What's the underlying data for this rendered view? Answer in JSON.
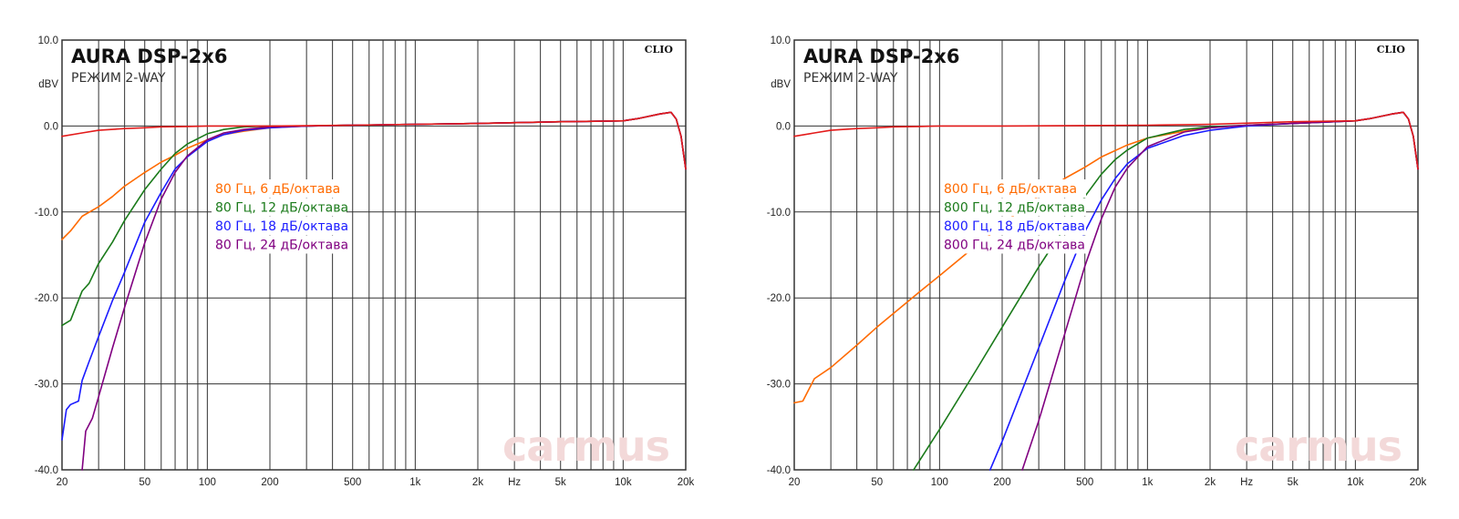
{
  "chart_data": [
    {
      "type": "line",
      "title": "AURA DSP-2x6",
      "subtitle": "РЕЖИМ 2-WAY",
      "brand": "CLIO",
      "watermark": "carmus",
      "ylabel": "dBV",
      "xlabel": "Hz",
      "x_scale": "log",
      "xlim": [
        20,
        20000
      ],
      "ylim": [
        -40,
        10
      ],
      "y_ticks": [
        "10.0",
        "0.0",
        "-10.0",
        "-20.0",
        "-30.0",
        "-40.0"
      ],
      "x_ticks": [
        "20",
        "50",
        "100",
        "200",
        "500",
        "1k",
        "2k",
        "Hz",
        "5k",
        "10k",
        "20k"
      ],
      "grid": true,
      "legend_position": "center",
      "series": [
        {
          "name": "80 Гц, 6 дБ/октава",
          "color": "#ff6a00",
          "x": [
            20,
            22,
            25,
            30,
            35,
            40,
            50,
            60,
            70,
            80,
            100,
            120,
            150,
            200,
            300,
            500,
            1000,
            2000,
            5000,
            10000,
            12000,
            15000,
            17000,
            18000,
            19000,
            20000
          ],
          "y": [
            -13.2,
            -12.2,
            -10.5,
            -9.4,
            -8.2,
            -7.0,
            -5.4,
            -4.2,
            -3.4,
            -2.6,
            -1.6,
            -1.0,
            -0.6,
            -0.2,
            0,
            0.1,
            0.2,
            0.3,
            0.5,
            0.6,
            0.9,
            1.4,
            1.6,
            0.8,
            -1.2,
            -5.0
          ]
        },
        {
          "name": "80 Гц, 12 дБ/октава",
          "color": "#1a7a1a",
          "x": [
            20,
            22,
            25,
            27,
            30,
            35,
            40,
            50,
            60,
            70,
            80,
            100,
            120,
            150,
            200,
            300,
            500,
            1000,
            2000,
            5000,
            10000,
            12000,
            15000,
            17000,
            18000,
            19000,
            20000
          ],
          "y": [
            -23.2,
            -22.6,
            -19.2,
            -18.3,
            -16.0,
            -13.5,
            -11.0,
            -7.4,
            -5.0,
            -3.2,
            -2.1,
            -0.9,
            -0.4,
            -0.1,
            0,
            0,
            0.1,
            0.2,
            0.3,
            0.5,
            0.6,
            0.9,
            1.4,
            1.6,
            0.8,
            -1.2,
            -5.0
          ]
        },
        {
          "name": "80 Гц, 18 дБ/октава",
          "color": "#1a1aff",
          "x": [
            20,
            21,
            22,
            24,
            25,
            27,
            30,
            35,
            40,
            50,
            60,
            70,
            80,
            100,
            120,
            150,
            200,
            300,
            500,
            1000,
            2000,
            5000,
            10000,
            12000,
            15000,
            17000,
            18000,
            19000,
            20000
          ],
          "y": [
            -36.5,
            -33.0,
            -32.4,
            -32.0,
            -29.6,
            -27.4,
            -24.5,
            -20.3,
            -17.0,
            -11.2,
            -7.7,
            -5.0,
            -3.6,
            -1.8,
            -1.0,
            -0.5,
            -0.2,
            0,
            0.1,
            0.2,
            0.3,
            0.5,
            0.6,
            0.9,
            1.4,
            1.6,
            0.8,
            -1.2,
            -5.0
          ]
        },
        {
          "name": "80 Гц, 24 дБ/октава",
          "color": "#800080",
          "x": [
            25,
            26,
            28,
            30,
            35,
            40,
            50,
            60,
            70,
            80,
            100,
            120,
            150,
            200,
            300,
            500,
            1000,
            2000,
            5000,
            10000,
            12000,
            15000,
            17000,
            18000,
            19000,
            20000
          ],
          "y": [
            -40.0,
            -35.5,
            -34.0,
            -31.5,
            -25.8,
            -21.1,
            -13.6,
            -8.5,
            -5.4,
            -3.5,
            -1.6,
            -0.8,
            -0.4,
            -0.1,
            0,
            0.1,
            0.2,
            0.3,
            0.5,
            0.6,
            0.9,
            1.4,
            1.6,
            0.8,
            -1.2,
            -5.0
          ]
        },
        {
          "name": "",
          "color": "#e31a1a",
          "x": [
            20,
            25,
            30,
            40,
            50,
            60,
            80,
            100,
            150,
            200,
            500,
            1000,
            2000,
            5000,
            10000,
            12000,
            15000,
            17000,
            18000,
            19000,
            20000
          ],
          "y": [
            -1.2,
            -0.8,
            -0.5,
            -0.3,
            -0.2,
            -0.1,
            -0.05,
            0,
            0,
            0,
            0.1,
            0.2,
            0.3,
            0.5,
            0.6,
            0.9,
            1.4,
            1.6,
            0.8,
            -1.2,
            -5.0
          ]
        }
      ]
    },
    {
      "type": "line",
      "title": "AURA DSP-2x6",
      "subtitle": "РЕЖИМ 2-WAY",
      "brand": "CLIO",
      "watermark": "carmus",
      "ylabel": "dBV",
      "xlabel": "Hz",
      "x_scale": "log",
      "xlim": [
        20,
        20000
      ],
      "ylim": [
        -40,
        10
      ],
      "y_ticks": [
        "10.0",
        "0.0",
        "-10.0",
        "-20.0",
        "-30.0",
        "-40.0"
      ],
      "x_ticks": [
        "20",
        "50",
        "100",
        "200",
        "500",
        "1k",
        "2k",
        "Hz",
        "5k",
        "10k",
        "20k"
      ],
      "grid": true,
      "legend_position": "center",
      "series": [
        {
          "name": "800 Гц, 6 дБ/октава",
          "color": "#ff6a00",
          "x": [
            20,
            22,
            25,
            30,
            40,
            50,
            60,
            80,
            100,
            150,
            200,
            300,
            400,
            500,
            600,
            800,
            1000,
            1500,
            2000,
            3000,
            5000,
            10000,
            12000,
            15000,
            17000,
            18000,
            19000,
            20000
          ],
          "y": [
            -32.2,
            -32.0,
            -29.4,
            -28.1,
            -25.5,
            -23.4,
            -21.8,
            -19.3,
            -17.4,
            -13.9,
            -11.5,
            -8.1,
            -6.1,
            -4.8,
            -3.6,
            -2.2,
            -1.4,
            -0.6,
            -0.2,
            0.1,
            0.3,
            0.6,
            0.9,
            1.4,
            1.6,
            0.8,
            -1.2,
            -5.0
          ]
        },
        {
          "name": "800 Гц, 12 дБ/октава",
          "color": "#1a7a1a",
          "x": [
            75,
            100,
            150,
            200,
            300,
            400,
            500,
            600,
            700,
            800,
            1000,
            1500,
            2000,
            3000,
            5000,
            10000,
            12000,
            15000,
            17000,
            18000,
            19000,
            20000
          ],
          "y": [
            -40.0,
            -35.3,
            -28.4,
            -23.4,
            -16.4,
            -11.8,
            -8.2,
            -5.6,
            -3.9,
            -2.8,
            -1.4,
            -0.4,
            -0.1,
            0.1,
            0.3,
            0.6,
            0.9,
            1.4,
            1.6,
            0.8,
            -1.2,
            -5.0
          ]
        },
        {
          "name": "800 Гц, 18 дБ/октава",
          "color": "#1a1aff",
          "x": [
            175,
            200,
            300,
            400,
            500,
            600,
            700,
            800,
            1000,
            1500,
            2000,
            3000,
            5000,
            10000,
            12000,
            15000,
            17000,
            18000,
            19000,
            20000
          ],
          "y": [
            -40.0,
            -36.7,
            -25.8,
            -18.0,
            -12.3,
            -8.6,
            -6.1,
            -4.4,
            -2.6,
            -1.1,
            -0.5,
            0,
            0.3,
            0.6,
            0.9,
            1.4,
            1.6,
            0.8,
            -1.2,
            -5.0
          ]
        },
        {
          "name": "800 Гц, 24 дБ/октава",
          "color": "#800080",
          "x": [
            250,
            300,
            400,
            500,
            600,
            700,
            800,
            1000,
            1500,
            2000,
            3000,
            5000,
            10000,
            12000,
            15000,
            17000,
            18000,
            19000,
            20000
          ],
          "y": [
            -40.0,
            -34.3,
            -24.2,
            -16.3,
            -10.8,
            -7.1,
            -4.9,
            -2.4,
            -0.7,
            -0.2,
            0.1,
            0.3,
            0.6,
            0.9,
            1.4,
            1.6,
            0.8,
            -1.2,
            -5.0
          ]
        },
        {
          "name": "",
          "color": "#e31a1a",
          "x": [
            20,
            25,
            30,
            40,
            50,
            60,
            80,
            100,
            150,
            200,
            500,
            1000,
            2000,
            5000,
            10000,
            12000,
            15000,
            17000,
            18000,
            19000,
            20000
          ],
          "y": [
            -1.2,
            -0.8,
            -0.5,
            -0.3,
            -0.2,
            -0.1,
            -0.05,
            0,
            0,
            0,
            0.05,
            0.1,
            0.2,
            0.5,
            0.6,
            0.9,
            1.4,
            1.6,
            0.8,
            -1.2,
            -5.0
          ]
        }
      ]
    }
  ]
}
